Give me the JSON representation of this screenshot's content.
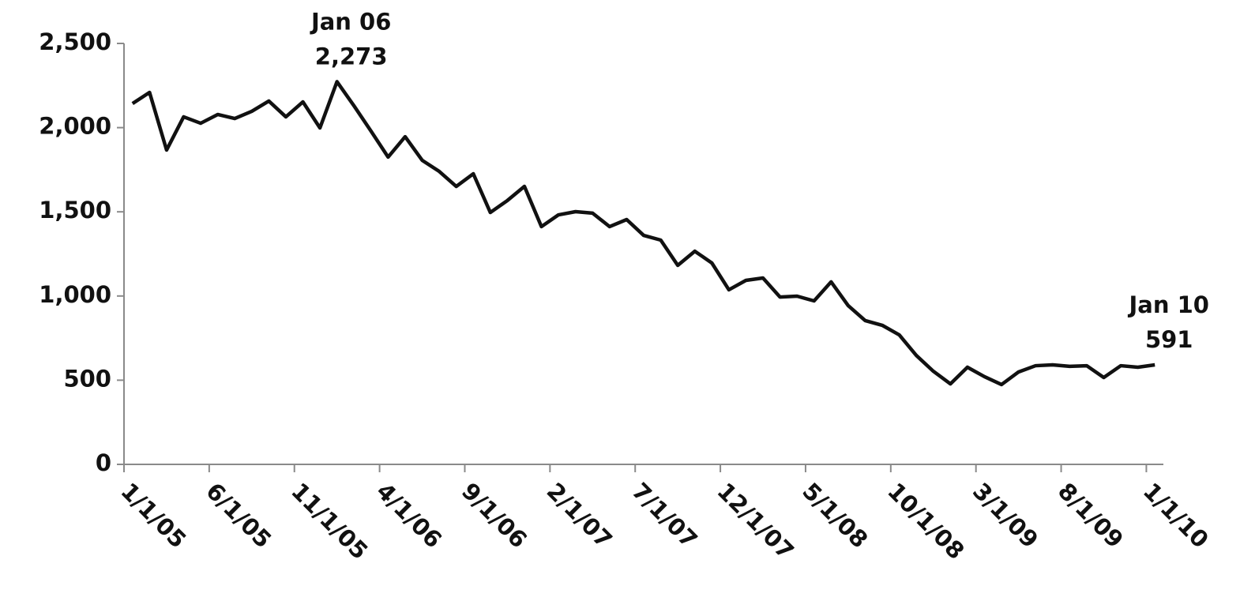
{
  "chart_data": {
    "type": "line",
    "categories": [
      "1/1/05",
      null,
      null,
      null,
      null,
      "6/1/05",
      null,
      null,
      null,
      null,
      "11/1/05",
      null,
      null,
      null,
      null,
      "4/1/06",
      null,
      null,
      null,
      null,
      "9/1/06",
      null,
      null,
      null,
      null,
      "2/1/07",
      null,
      null,
      null,
      null,
      "7/1/07",
      null,
      null,
      null,
      null,
      "12/1/07",
      null,
      null,
      null,
      null,
      "5/1/08",
      null,
      null,
      null,
      null,
      "10/1/08",
      null,
      null,
      null,
      null,
      "3/1/09",
      null,
      null,
      null,
      null,
      "8/1/09",
      null,
      null,
      null,
      null,
      "1/1/10"
    ],
    "values": [
      2143,
      2209,
      1867,
      2064,
      2026,
      2078,
      2054,
      2097,
      2158,
      2064,
      2153,
      1998,
      2273,
      2129,
      1979,
      1825,
      1946,
      1806,
      1740,
      1651,
      1726,
      1496,
      1567,
      1651,
      1412,
      1482,
      1501,
      1492,
      1412,
      1454,
      1360,
      1332,
      1182,
      1266,
      1196,
      1037,
      1093,
      1107,
      994,
      999,
      971,
      1084,
      943,
      854,
      826,
      769,
      647,
      553,
      478,
      577,
      521,
      474,
      549,
      586,
      591,
      582,
      586,
      516,
      586,
      577,
      591
    ],
    "value_labels": [
      null,
      null,
      null,
      null,
      null,
      null,
      null,
      null,
      null,
      null,
      null,
      null,
      "2,273",
      null,
      null,
      null,
      null,
      null,
      null,
      null,
      null,
      null,
      null,
      null,
      null,
      null,
      null,
      null,
      null,
      null,
      null,
      null,
      null,
      null,
      null,
      null,
      null,
      null,
      null,
      null,
      null,
      null,
      null,
      null,
      null,
      null,
      null,
      null,
      null,
      null,
      null,
      null,
      null,
      null,
      null,
      null,
      null,
      null,
      null,
      null,
      "591"
    ],
    "annotations": [
      {
        "text": "Jan 06",
        "point": 12
      },
      {
        "text": "Jan 10",
        "point": 60
      }
    ],
    "color": "#111111",
    "ylim": [
      0,
      2500
    ],
    "yticks": [
      0,
      500,
      {
        "value": 1000,
        "label": "1,000"
      },
      {
        "value": 1500,
        "label": "1,500"
      },
      {
        "value": 2000,
        "label": "2,000"
      },
      {
        "value": 2500,
        "label": "2,500"
      }
    ],
    "grid": false
  }
}
